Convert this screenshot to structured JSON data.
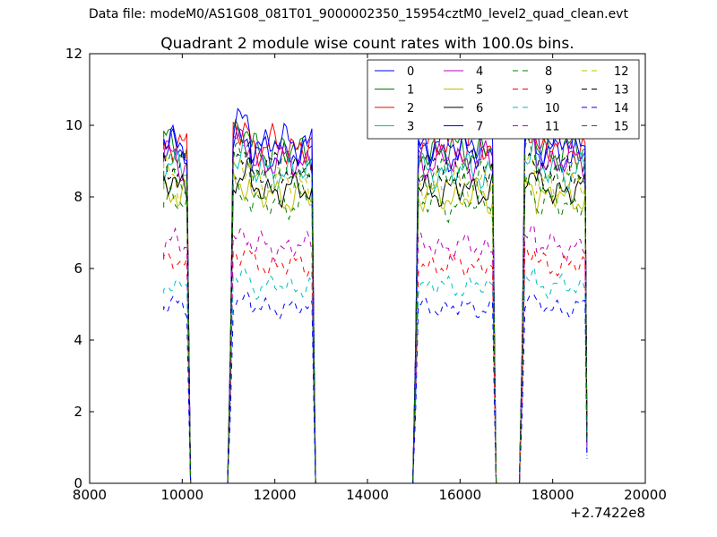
{
  "suptitle": "Data file: modeM0/AS1G08_081T01_9000002350_15954cztM0_level2_quad_clean.evt",
  "chart_data": {
    "type": "line",
    "title": "Quadrant 2 module wise count rates with 100.0s bins.",
    "xlabel": "",
    "ylabel": "",
    "x_offset_label": "+2.7422e8",
    "xlim": [
      8000,
      20000
    ],
    "ylim": [
      0,
      12
    ],
    "xticks": [
      "8000",
      "10000",
      "12000",
      "14000",
      "16000",
      "18000",
      "20000"
    ],
    "yticks": [
      "0",
      "2",
      "4",
      "6",
      "8",
      "10",
      "12"
    ],
    "grid": false,
    "legend": {
      "placement": "top-right",
      "columns": 4
    },
    "segments": [
      [
        9600,
        10100
      ],
      [
        11100,
        12800
      ],
      [
        15100,
        16700
      ],
      [
        17400,
        18700
      ]
    ],
    "series": [
      {
        "name": "0",
        "color": "#0000ff",
        "dash": "solid",
        "level": 9.2,
        "style": 0
      },
      {
        "name": "1",
        "color": "#008000",
        "dash": "solid",
        "level": 9.3,
        "style": 1
      },
      {
        "name": "2",
        "color": "#ff0000",
        "dash": "solid",
        "level": 9.4,
        "style": 2
      },
      {
        "name": "3",
        "color": "#00bfbf",
        "dash": "solid",
        "level": 8.7,
        "style": 3
      },
      {
        "name": "4",
        "color": "#bf00bf",
        "dash": "solid",
        "level": 9.0,
        "style": 4
      },
      {
        "name": "5",
        "color": "#bfbf00",
        "dash": "solid",
        "level": 8.0,
        "style": 5
      },
      {
        "name": "6",
        "color": "#000000",
        "dash": "solid",
        "level": 8.2,
        "style": 6
      },
      {
        "name": "7",
        "color": "#0000ff",
        "dash": "solid",
        "level": 9.5,
        "style": 7
      },
      {
        "name": "8",
        "color": "#008000",
        "dash": "dashed",
        "level": 7.8,
        "style": 8
      },
      {
        "name": "9",
        "color": "#ff0000",
        "dash": "dashed",
        "level": 6.1,
        "style": 9
      },
      {
        "name": "10",
        "color": "#00bfbf",
        "dash": "dashed",
        "level": 5.5,
        "style": 10
      },
      {
        "name": "11",
        "color": "#bf00bf",
        "dash": "dashed",
        "level": 6.6,
        "style": 11
      },
      {
        "name": "12",
        "color": "#bfbf00",
        "dash": "dashed",
        "level": 8.4,
        "style": 12
      },
      {
        "name": "13",
        "color": "#000000",
        "dash": "dashed",
        "level": 8.8,
        "style": 13
      },
      {
        "name": "14",
        "color": "#0000ff",
        "dash": "dashed",
        "level": 4.9,
        "style": 14
      },
      {
        "name": "15",
        "color": "#008000",
        "dash": "dashed",
        "level": 8.6,
        "style": 15
      }
    ]
  }
}
